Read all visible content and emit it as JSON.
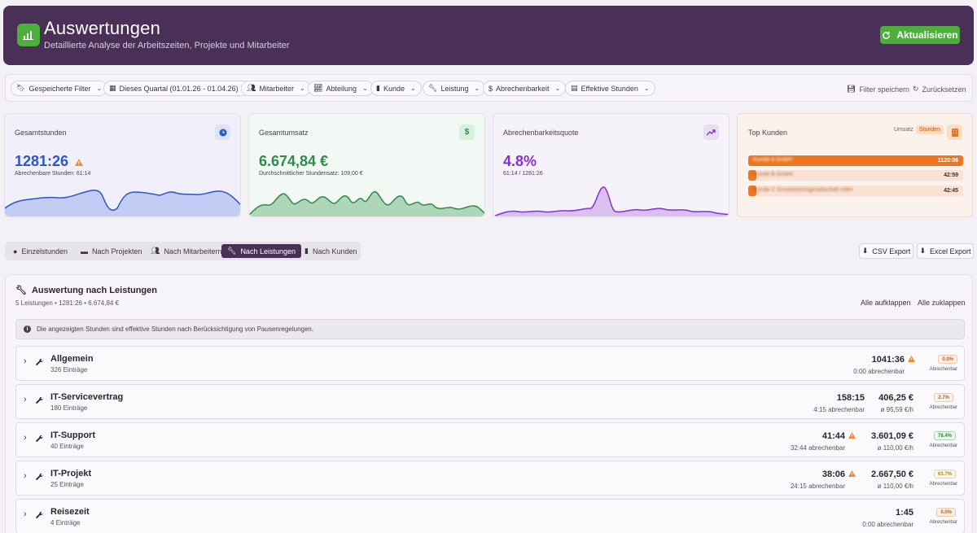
{
  "header": {
    "title": "Auswertungen",
    "subtitle": "Detaillierte Analyse der Arbeitszeiten, Projekte und Mitarbeiter",
    "refresh_label": "Aktualisieren",
    "accent": "#4caf3c",
    "bg": "#4a2f56"
  },
  "filters": {
    "saved": "Gespeicherte Filter",
    "period": "Dieses Quartal (01.01.26 - 01.04.26)",
    "employee": "Mitarbeiter",
    "department": "Abteilung",
    "customer": "Kunde",
    "service": "Leistung",
    "billability": "Abrechenbarkeit",
    "effective": "Effektive Stunden",
    "save_label": "Filter speichern",
    "reset_label": "Zurücksetzen"
  },
  "kpis": {
    "hours": {
      "label": "Gesamtstunden",
      "value": "1281:26",
      "sub": "Abrechenbare Stunden: 61:14",
      "color": "#2c55c8",
      "icon": "clock-icon"
    },
    "revenue": {
      "label": "Gesamtumsatz",
      "value": "6.674,84 €",
      "sub": "Durchschnittlicher Stundensatz: 109,00 €",
      "color": "#2e8b4a",
      "icon": "dollar-icon",
      "icon_glyph": "$"
    },
    "quota": {
      "label": "Abrechenbarkeitsquote",
      "value": "4.8%",
      "sub": "61:14 / 1281:26",
      "color": "#8a2fd0",
      "icon": "trending-up-icon"
    }
  },
  "top_customers": {
    "label": "Top Kunden",
    "toggle_revenue": "Umsatz",
    "toggle_hours": "Stunden",
    "items": [
      {
        "name": "Kunde A GmbH",
        "value": "1120:06",
        "share": 1.0
      },
      {
        "name": "Kunde B GmbH",
        "value": "42:59",
        "share": 0.038
      },
      {
        "name": "Kunde C Grundstücksgesellschaft mbH",
        "value": "42:45",
        "share": 0.038
      }
    ]
  },
  "tabs": [
    {
      "label": "Einzelstunden",
      "icon": "clock-icon"
    },
    {
      "label": "Nach Projekten",
      "icon": "folder-icon"
    },
    {
      "label": "Nach Mitarbeitern",
      "icon": "users-icon"
    },
    {
      "label": "Nach Leistungen",
      "icon": "wrench-icon",
      "active": true
    },
    {
      "label": "Nach Kunden",
      "icon": "building-icon"
    }
  ],
  "export": {
    "csv": "CSV Export",
    "excel": "Excel Export"
  },
  "panel": {
    "title": "Auswertung nach Leistungen",
    "meta": "5 Leistungen • 1281:26 • 6.674,84 €",
    "expand_all": "Alle aufklappen",
    "collapse_all": "Alle zuklappen",
    "info": "Die angezeigten Stunden sind effektive Stunden nach Berücksichtigung von Pausenregelungen.",
    "badge_label": "Abrechenbar"
  },
  "rows": [
    {
      "name": "Allgemein",
      "count": "326 Einträge",
      "hours": "1041:36",
      "billable": "0:00 abrechenbar",
      "amount": "",
      "rate": "",
      "badge": "0.0%",
      "warn": true,
      "badge_color": "#c45a14"
    },
    {
      "name": "IT-Servicevertrag",
      "count": "180 Einträge",
      "hours": "158:15",
      "billable": "4:15 abrechenbar",
      "amount": "406,25 €",
      "rate": "ø 95,59 €/h",
      "badge": "2.7%",
      "warn": false,
      "badge_color": "#c45a14"
    },
    {
      "name": "IT-Support",
      "count": "40 Einträge",
      "hours": "41:44",
      "billable": "32:44 abrechenbar",
      "amount": "3.601,09 €",
      "rate": "ø 110,00 €/h",
      "badge": "78.4%",
      "warn": true,
      "badge_color": "#2e8b4a"
    },
    {
      "name": "IT-Projekt",
      "count": "25 Einträge",
      "hours": "38:06",
      "billable": "24:15 abrechenbar",
      "amount": "2.667,50 €",
      "rate": "ø 110,00 €/h",
      "badge": "63.7%",
      "warn": true,
      "badge_color": "#c48a14"
    },
    {
      "name": "Reisezeit",
      "count": "4 Einträge",
      "hours": "1:45",
      "billable": "0:00 abrechenbar",
      "amount": "",
      "rate": "",
      "badge": "0.0%",
      "warn": false,
      "badge_color": "#c45a14"
    }
  ]
}
